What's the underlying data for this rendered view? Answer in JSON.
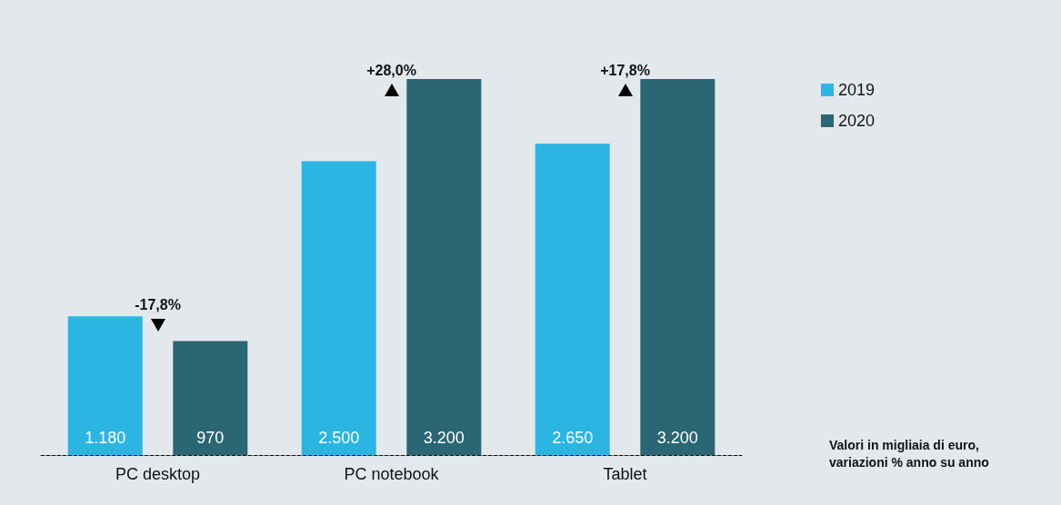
{
  "chart_data": {
    "type": "bar",
    "categories": [
      "PC desktop",
      "PC notebook",
      "Tablet"
    ],
    "series": [
      {
        "name": "2019",
        "color": "#2bb5e3",
        "values": [
          1180,
          2500,
          2650
        ],
        "value_labels": [
          "1.180",
          "2.500",
          "2.650"
        ]
      },
      {
        "name": "2020",
        "color": "#2a6673",
        "values": [
          970,
          3200,
          3200
        ],
        "value_labels": [
          "970",
          "3.200",
          "3.200"
        ]
      }
    ],
    "annotations": [
      "-17,8%",
      "+28,0%",
      "+17,8%",
      "Valori in migliaia di euro, variazioni % anno su anno"
    ],
    "legend": "right"
  }
}
